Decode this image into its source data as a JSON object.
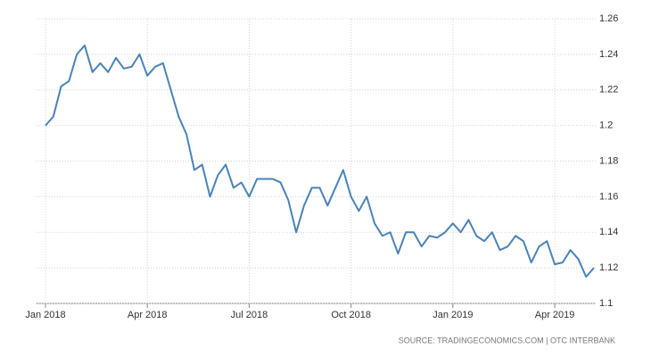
{
  "chart_data": {
    "type": "line",
    "categories": [
      "Jan 2018",
      null,
      null,
      null,
      null,
      null,
      null,
      null,
      null,
      null,
      null,
      null,
      null,
      "Apr 2018",
      null,
      null,
      null,
      null,
      null,
      null,
      null,
      null,
      null,
      null,
      null,
      null,
      "Jul 2018",
      null,
      null,
      null,
      null,
      null,
      null,
      null,
      null,
      null,
      null,
      null,
      null,
      "Oct 2018",
      null,
      null,
      null,
      null,
      null,
      null,
      null,
      null,
      null,
      null,
      null,
      null,
      "Jan 2019",
      null,
      null,
      null,
      null,
      null,
      null,
      null,
      null,
      null,
      null,
      null,
      null,
      "Apr 2019",
      null,
      null,
      null,
      null,
      null
    ],
    "series": [
      {
        "color": "#4a83b8",
        "values": [
          1.2,
          1.205,
          1.222,
          1.225,
          1.24,
          1.245,
          1.23,
          1.235,
          1.23,
          1.238,
          1.232,
          1.233,
          1.24,
          1.228,
          1.233,
          1.235,
          1.22,
          1.205,
          1.195,
          1.175,
          1.178,
          1.16,
          1.172,
          1.178,
          1.165,
          1.168,
          1.16,
          1.17,
          1.17,
          1.17,
          1.168,
          1.158,
          1.14,
          1.155,
          1.165,
          1.165,
          1.155,
          1.165,
          1.175,
          1.16,
          1.152,
          1.16,
          1.145,
          1.138,
          1.14,
          1.128,
          1.14,
          1.14,
          1.132,
          1.138,
          1.137,
          1.14,
          1.145,
          1.14,
          1.147,
          1.138,
          1.135,
          1.14,
          1.13,
          1.132,
          1.138,
          1.135,
          1.123,
          1.132,
          1.135,
          1.122,
          1.123,
          1.13,
          1.125,
          1.115,
          1.12
        ]
      }
    ],
    "ylim": [
      1.1,
      1.26
    ],
    "yticks": [
      1.1,
      1.12,
      1.14,
      1.16,
      1.18,
      1.2,
      1.22,
      1.24,
      1.26
    ],
    "grid": true,
    "source": "SOURCE: TRADINGECONOMICS.COM | OTC INTERBANK"
  }
}
